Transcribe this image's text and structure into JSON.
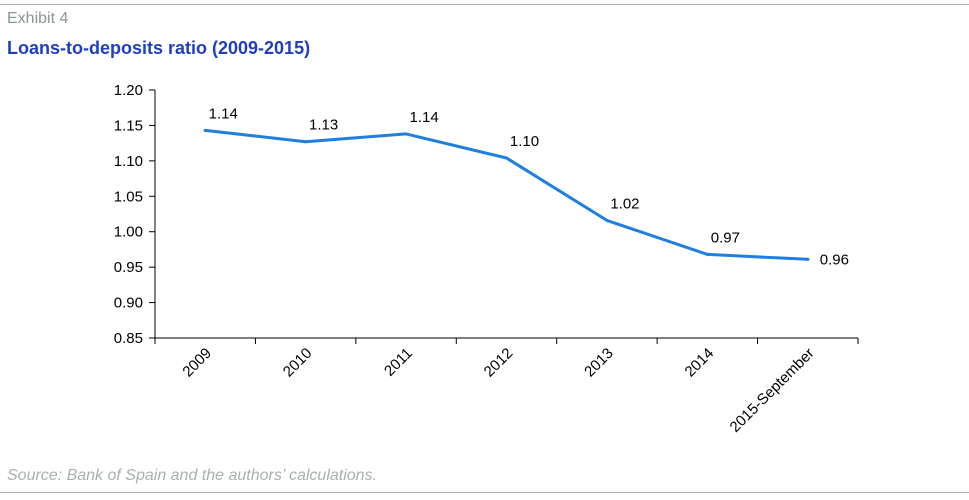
{
  "header": {
    "exhibit": "Exhibit 4",
    "title": "Loans-to-deposits ratio (2009-2015)"
  },
  "footer": {
    "source": "Source: Bank of Spain and the authors’ calculations."
  },
  "colors": {
    "title": "#1f3fc0",
    "line": "#1e7fe0",
    "rule": "#aab7b0",
    "muted": "#8a9690"
  },
  "chart_data": {
    "type": "line",
    "title": "Loans-to-deposits ratio (2009-2015)",
    "xlabel": "",
    "ylabel": "",
    "categories": [
      "2009",
      "2010",
      "2011",
      "2012",
      "2013",
      "2014",
      "2015-September"
    ],
    "series": [
      {
        "values": [
          1.143,
          1.127,
          1.138,
          1.104,
          1.016,
          0.968,
          0.961
        ],
        "labels": [
          "1.14",
          "1.13",
          "1.14",
          "1.10",
          "1.02",
          "0.97",
          "0.96"
        ]
      }
    ],
    "ylim": [
      0.85,
      1.2
    ],
    "yticks": [
      0.85,
      0.9,
      0.95,
      1.0,
      1.05,
      1.1,
      1.15,
      1.2
    ],
    "ytick_labels": [
      "0.85",
      "0.90",
      "0.95",
      "1.00",
      "1.05",
      "1.10",
      "1.15",
      "1.20"
    ],
    "grid": false,
    "legend": "none"
  }
}
